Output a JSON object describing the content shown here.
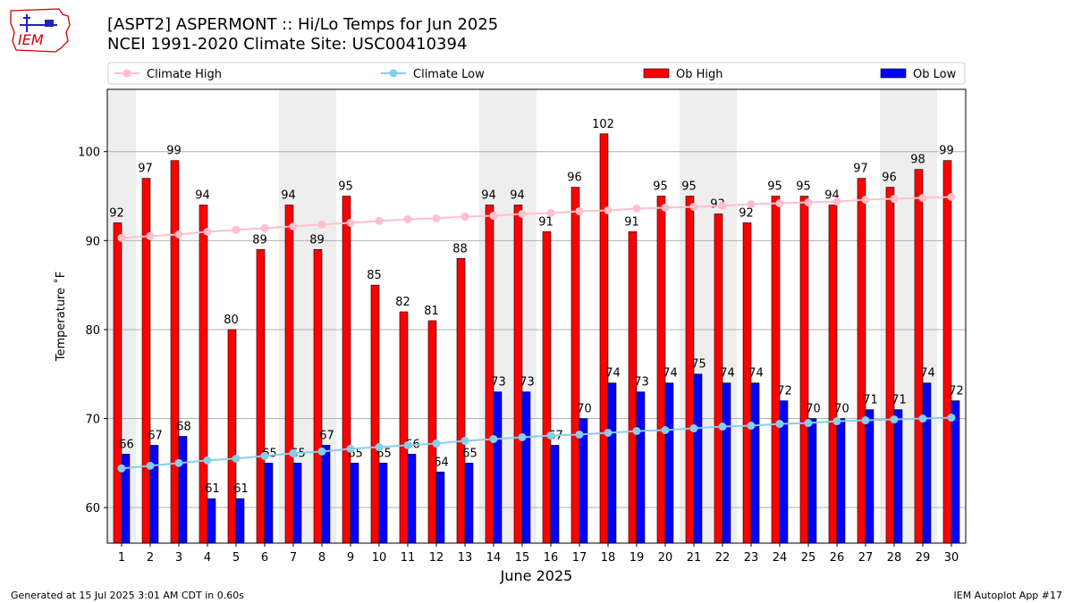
{
  "header": {
    "title_line1": "[ASPT2] ASPERMONT :: Hi/Lo Temps for Jun 2025",
    "title_line2": "NCEI 1991-2020 Climate Site: USC00410394",
    "logo_text": "IEM"
  },
  "footer": {
    "generated": "Generated at 15 Jul 2025 3:01 AM CDT in 0.60s",
    "app": "IEM Autoplot App #17"
  },
  "chart_data": {
    "type": "bar",
    "xlabel": "June 2025",
    "ylabel": "Temperature ˚F",
    "ylim": [
      56,
      107
    ],
    "yticks": [
      60,
      70,
      80,
      90,
      100
    ],
    "grid": "horizontal",
    "legend_placement": "top",
    "weekend_shading_days": [
      1,
      7,
      8,
      14,
      15,
      21,
      22,
      28,
      29
    ],
    "categories": [
      "1",
      "2",
      "3",
      "4",
      "5",
      "6",
      "7",
      "8",
      "9",
      "10",
      "11",
      "12",
      "13",
      "14",
      "15",
      "16",
      "17",
      "18",
      "19",
      "20",
      "21",
      "22",
      "23",
      "24",
      "25",
      "26",
      "27",
      "28",
      "29",
      "30"
    ],
    "series": [
      {
        "name": "Ob High",
        "kind": "bar",
        "color": "#ff0000",
        "values": [
          92,
          97,
          99,
          94,
          80,
          89,
          94,
          89,
          95,
          85,
          82,
          81,
          88,
          94,
          94,
          91,
          96,
          102,
          91,
          95,
          95,
          93,
          92,
          95,
          95,
          94,
          97,
          96,
          98,
          99
        ]
      },
      {
        "name": "Ob Low",
        "kind": "bar",
        "color": "#0000ff",
        "values": [
          66,
          67,
          68,
          61,
          61,
          65,
          65,
          67,
          65,
          65,
          66,
          64,
          65,
          73,
          73,
          67,
          70,
          74,
          73,
          74,
          75,
          74,
          74,
          72,
          70,
          70,
          71,
          71,
          74,
          72
        ]
      },
      {
        "name": "Climate High",
        "kind": "line",
        "color": "#ffc0cb",
        "values": [
          90.3,
          90.5,
          90.7,
          91.0,
          91.2,
          91.4,
          91.6,
          91.8,
          92.0,
          92.2,
          92.4,
          92.5,
          92.7,
          92.8,
          93.0,
          93.1,
          93.3,
          93.4,
          93.6,
          93.7,
          93.8,
          93.9,
          94.1,
          94.2,
          94.3,
          94.4,
          94.6,
          94.7,
          94.8,
          94.9
        ]
      },
      {
        "name": "Climate Low",
        "kind": "line",
        "color": "#87ceeb",
        "values": [
          64.4,
          64.7,
          65.0,
          65.3,
          65.5,
          65.8,
          66.1,
          66.3,
          66.6,
          66.8,
          67.0,
          67.2,
          67.5,
          67.7,
          67.9,
          68.1,
          68.2,
          68.4,
          68.6,
          68.7,
          68.9,
          69.1,
          69.2,
          69.4,
          69.5,
          69.7,
          69.8,
          69.9,
          70.0,
          70.1
        ]
      }
    ],
    "legend": [
      "Climate High",
      "Climate Low",
      "Ob High",
      "Ob Low"
    ]
  }
}
